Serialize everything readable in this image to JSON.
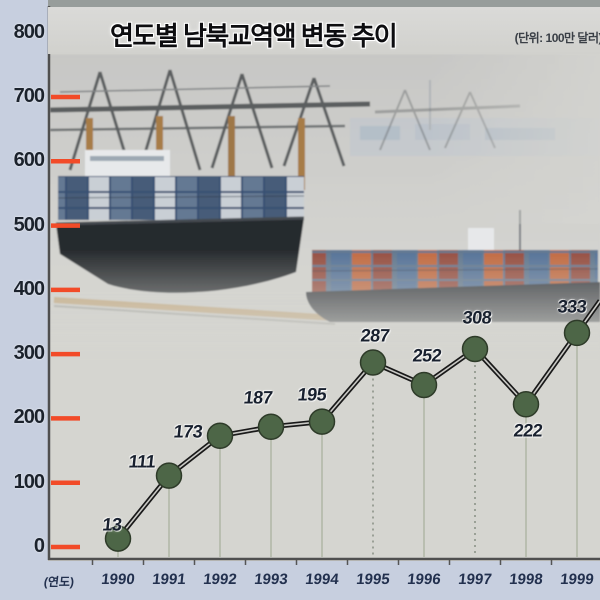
{
  "header": {
    "title": "연도별 남북교역액 변동 추이",
    "unit": "(단위: 100만 달러)"
  },
  "x_axis": {
    "caption": "(연도)"
  },
  "chart_data": {
    "type": "line",
    "title": "연도별 남북교역액 변동 추이",
    "unit_label": "(단위: 100만 달러)",
    "categories": [
      "1990",
      "1991",
      "1992",
      "1993",
      "1994",
      "1995",
      "1996",
      "1997",
      "1998",
      "1999"
    ],
    "values": [
      13,
      111,
      173,
      187,
      195,
      287,
      252,
      308,
      222,
      333
    ],
    "xlabel": "(연도)",
    "ylabel": "",
    "ylim": [
      0,
      800
    ],
    "y_ticks": [
      0,
      100,
      200,
      300,
      400,
      500,
      600,
      700,
      800
    ],
    "legend": "none",
    "grid": "vertical-drop-lines-per-point",
    "line_color": "#191919",
    "marker_color": "#4d6647",
    "tick_dash_color": "#f24b28",
    "background": "container-port-photo"
  },
  "colors": {
    "gutter_blue": "#c7cfdf",
    "plot_bg": "#d5d5d0",
    "axis": "#4f4f4f",
    "label_navy": "#22304e"
  }
}
